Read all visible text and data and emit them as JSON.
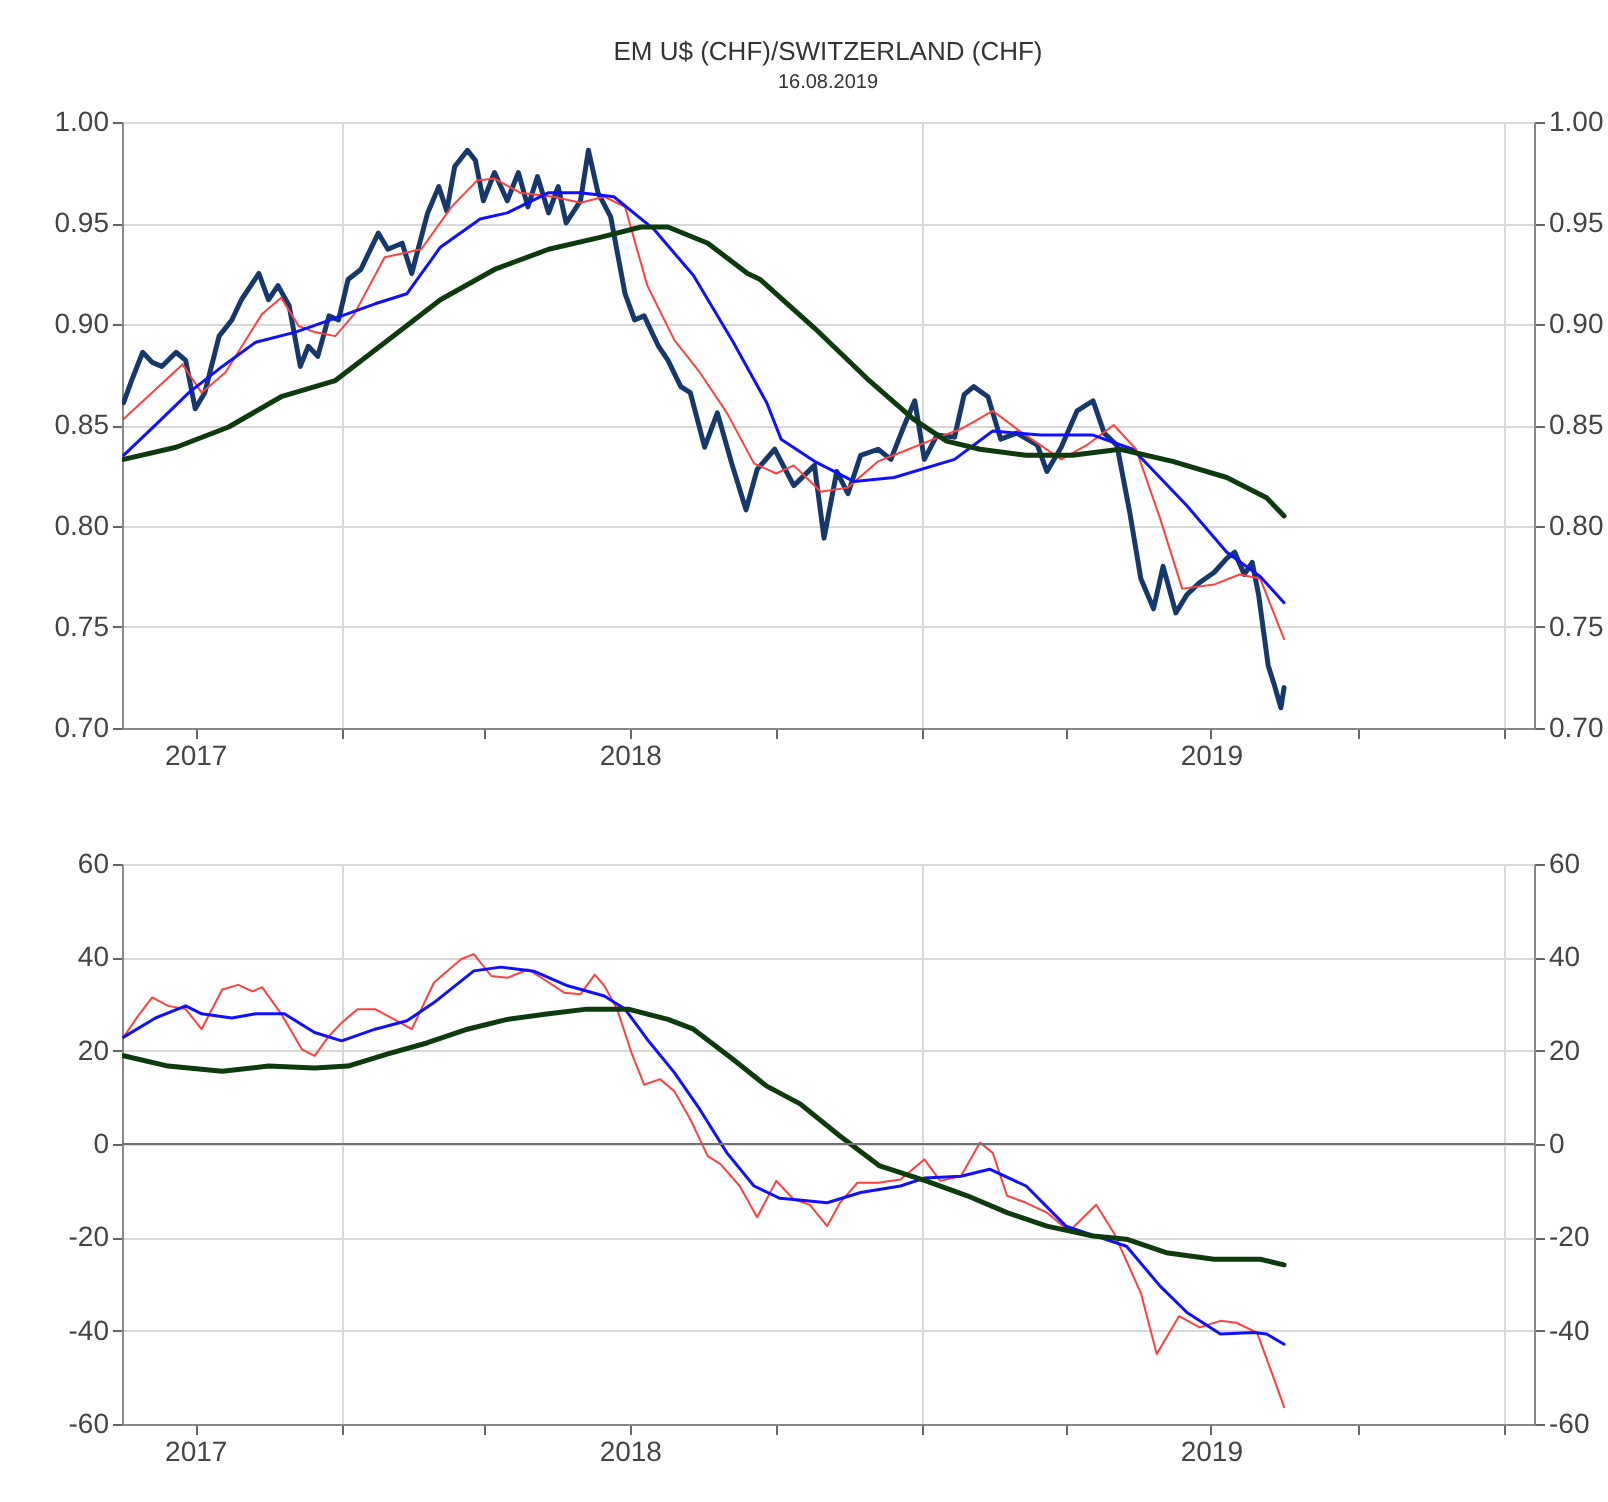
{
  "chart_data": [
    {
      "type": "line",
      "title": "EM U$ (CHF)/SWITZERLAND (CHF)",
      "subtitle": "16.08.2019",
      "xlim": [
        "2017-08-16",
        "2020-01-20"
      ],
      "xticks": [
        {
          "value": "2017-10-01",
          "label": "2017"
        },
        {
          "value": "2018-01-01",
          "label": null
        },
        {
          "value": "2018-04-01",
          "label": null
        },
        {
          "value": "2018-07-01",
          "label": "2018"
        },
        {
          "value": "2018-10-01",
          "label": null
        },
        {
          "value": "2019-01-01",
          "label": null
        },
        {
          "value": "2019-04-01",
          "label": null
        },
        {
          "value": "2019-07-01",
          "label": "2019"
        },
        {
          "value": "2019-10-01",
          "label": null
        },
        {
          "value": "2020-01-01",
          "label": null
        }
      ],
      "ylim": [
        0.7,
        1.0
      ],
      "yticks": [
        {
          "value": 0.7,
          "label": "0.70"
        },
        {
          "value": 0.75,
          "label": "0.75"
        },
        {
          "value": 0.8,
          "label": "0.80"
        },
        {
          "value": 0.85,
          "label": "0.85"
        },
        {
          "value": 0.9,
          "label": "0.90"
        },
        {
          "value": 0.95,
          "label": "0.95"
        },
        {
          "value": 1.0,
          "label": "1.00"
        }
      ],
      "y2lim": [
        0.7,
        1.0
      ],
      "y2ticks": [
        {
          "value": 0.7,
          "label": "0.70"
        },
        {
          "value": 0.75,
          "label": "0.75"
        },
        {
          "value": 0.8,
          "label": "0.80"
        },
        {
          "value": 0.85,
          "label": "0.85"
        },
        {
          "value": 0.9,
          "label": "0.90"
        },
        {
          "value": 0.95,
          "label": "0.95"
        },
        {
          "value": 1.0,
          "label": "1.00"
        }
      ],
      "grid": true,
      "series": [
        {
          "color": "#17386b",
          "x": [
            "2017-08-17",
            "2017-08-22",
            "2017-08-29",
            "2017-09-04",
            "2017-09-10",
            "2017-09-19",
            "2017-09-25",
            "2017-10-01",
            "2017-10-07",
            "2017-10-16",
            "2017-10-24",
            "2017-10-30",
            "2017-11-10",
            "2017-11-16",
            "2017-11-22",
            "2017-11-29",
            "2017-12-06",
            "2017-12-11",
            "2017-12-17",
            "2017-12-24",
            "2017-12-30",
            "2018-01-05",
            "2018-01-13",
            "2018-01-24",
            "2018-01-30",
            "2018-02-08",
            "2018-02-14",
            "2018-02-24",
            "2018-03-03",
            "2018-03-08",
            "2018-03-13",
            "2018-03-21",
            "2018-03-26",
            "2018-03-31",
            "2018-04-07",
            "2018-04-15",
            "2018-04-22",
            "2018-04-28",
            "2018-05-04",
            "2018-05-11",
            "2018-05-17",
            "2018-05-22",
            "2018-05-31",
            "2018-06-05",
            "2018-06-11",
            "2018-06-19",
            "2018-06-28",
            "2018-07-04",
            "2018-07-10",
            "2018-07-19",
            "2018-07-25",
            "2018-08-02",
            "2018-08-08",
            "2018-08-17",
            "2018-08-25",
            "2018-09-03",
            "2018-09-12",
            "2018-09-19",
            "2018-09-30",
            "2018-10-12",
            "2018-10-25",
            "2018-10-31",
            "2018-11-08",
            "2018-11-15",
            "2018-11-23",
            "2018-12-04",
            "2018-12-12",
            "2018-12-20",
            "2018-12-27",
            "2019-01-02",
            "2019-01-10",
            "2019-01-21",
            "2019-01-27",
            "2019-02-02",
            "2019-02-11",
            "2019-02-19",
            "2019-03-01",
            "2019-03-14",
            "2019-03-20",
            "2019-03-29",
            "2019-04-08",
            "2019-04-18",
            "2019-04-25",
            "2019-05-03",
            "2019-05-11",
            "2019-05-18",
            "2019-05-26",
            "2019-06-01",
            "2019-06-09",
            "2019-06-16",
            "2019-06-24",
            "2019-07-03",
            "2019-07-11",
            "2019-07-16",
            "2019-07-22",
            "2019-07-27",
            "2019-07-31",
            "2019-08-06",
            "2019-08-10",
            "2019-08-14",
            "2019-08-16"
          ],
          "values": [
            0.861,
            0.872,
            0.886,
            0.881,
            0.879,
            0.886,
            0.882,
            0.858,
            0.866,
            0.894,
            0.902,
            0.912,
            0.925,
            0.912,
            0.919,
            0.909,
            0.879,
            0.889,
            0.884,
            0.904,
            0.902,
            0.922,
            0.927,
            0.945,
            0.937,
            0.94,
            0.925,
            0.955,
            0.968,
            0.956,
            0.978,
            0.986,
            0.981,
            0.961,
            0.975,
            0.961,
            0.975,
            0.958,
            0.973,
            0.955,
            0.968,
            0.95,
            0.961,
            0.986,
            0.965,
            0.953,
            0.915,
            0.902,
            0.904,
            0.889,
            0.882,
            0.869,
            0.866,
            0.839,
            0.856,
            0.831,
            0.808,
            0.828,
            0.838,
            0.82,
            0.83,
            0.794,
            0.827,
            0.816,
            0.835,
            0.838,
            0.833,
            0.849,
            0.862,
            0.833,
            0.845,
            0.844,
            0.865,
            0.869,
            0.864,
            0.843,
            0.846,
            0.84,
            0.827,
            0.839,
            0.857,
            0.862,
            0.846,
            0.84,
            0.807,
            0.774,
            0.759,
            0.78,
            0.757,
            0.766,
            0.772,
            0.777,
            0.784,
            0.787,
            0.776,
            0.782,
            0.766,
            0.731,
            0.721,
            0.71,
            0.72
          ]
        },
        {
          "color": "#ff4040",
          "x": [
            "2017-08-17",
            "2017-09-23",
            "2017-10-05",
            "2017-10-20",
            "2017-11-12",
            "2017-11-24",
            "2017-12-05",
            "2017-12-15",
            "2017-12-28",
            "2018-01-09",
            "2018-01-28",
            "2018-02-20",
            "2018-03-11",
            "2018-03-27",
            "2018-04-07",
            "2018-04-23",
            "2018-05-14",
            "2018-05-31",
            "2018-06-15",
            "2018-06-28",
            "2018-07-12",
            "2018-07-29",
            "2018-08-14",
            "2018-08-31",
            "2018-09-17",
            "2018-10-01",
            "2018-10-12",
            "2018-10-29",
            "2018-11-15",
            "2018-12-04",
            "2018-12-20",
            "2019-01-08",
            "2019-01-25",
            "2019-02-14",
            "2019-03-03",
            "2019-03-29",
            "2019-04-14",
            "2019-05-01",
            "2019-05-15",
            "2019-05-30",
            "2019-06-13",
            "2019-07-03",
            "2019-07-19",
            "2019-08-01",
            "2019-08-16"
          ],
          "values": [
            0.853,
            0.88,
            0.866,
            0.876,
            0.905,
            0.913,
            0.899,
            0.896,
            0.894,
            0.905,
            0.933,
            0.937,
            0.958,
            0.971,
            0.972,
            0.965,
            0.963,
            0.96,
            0.963,
            0.958,
            0.919,
            0.892,
            0.876,
            0.856,
            0.831,
            0.826,
            0.83,
            0.817,
            0.819,
            0.832,
            0.837,
            0.843,
            0.848,
            0.857,
            0.847,
            0.833,
            0.84,
            0.85,
            0.838,
            0.804,
            0.769,
            0.771,
            0.776,
            0.774,
            0.744
          ]
        },
        {
          "color": "#1010ff",
          "x": [
            "2017-08-17",
            "2017-09-10",
            "2017-09-27",
            "2017-10-18",
            "2017-11-08",
            "2017-12-03",
            "2018-01-01",
            "2018-01-22",
            "2018-02-11",
            "2018-03-04",
            "2018-03-29",
            "2018-04-15",
            "2018-05-11",
            "2018-05-31",
            "2018-06-21",
            "2018-07-16",
            "2018-08-10",
            "2018-09-04",
            "2018-09-25",
            "2018-10-04",
            "2018-10-25",
            "2018-11-19",
            "2018-12-14",
            "2019-01-21",
            "2019-02-14",
            "2019-03-16",
            "2019-04-18",
            "2019-05-13",
            "2019-06-16",
            "2019-07-11",
            "2019-08-01",
            "2019-08-16"
          ],
          "values": [
            0.835,
            0.853,
            0.866,
            0.879,
            0.891,
            0.896,
            0.904,
            0.91,
            0.915,
            0.938,
            0.952,
            0.955,
            0.965,
            0.965,
            0.963,
            0.947,
            0.924,
            0.891,
            0.861,
            0.843,
            0.832,
            0.822,
            0.824,
            0.833,
            0.847,
            0.845,
            0.845,
            0.838,
            0.81,
            0.787,
            0.775,
            0.762
          ]
        },
        {
          "color": "#0d3b0d",
          "x": [
            "2017-08-17",
            "2017-09-19",
            "2017-10-22",
            "2017-11-24",
            "2017-12-28",
            "2018-01-30",
            "2018-03-04",
            "2018-04-07",
            "2018-05-11",
            "2018-06-13",
            "2018-07-08",
            "2018-07-25",
            "2018-08-19",
            "2018-09-13",
            "2018-09-21",
            "2018-10-25",
            "2018-11-27",
            "2018-12-26",
            "2019-01-16",
            "2019-02-06",
            "2019-03-07",
            "2019-04-05",
            "2019-05-05",
            "2019-06-07",
            "2019-07-11",
            "2019-08-05",
            "2019-08-16"
          ],
          "values": [
            0.833,
            0.839,
            0.849,
            0.864,
            0.872,
            0.892,
            0.912,
            0.927,
            0.937,
            0.943,
            0.948,
            0.948,
            0.94,
            0.925,
            0.922,
            0.898,
            0.873,
            0.853,
            0.842,
            0.838,
            0.835,
            0.835,
            0.838,
            0.832,
            0.824,
            0.814,
            0.805
          ]
        }
      ]
    },
    {
      "type": "line",
      "xlim": [
        "2017-08-16",
        "2020-01-20"
      ],
      "xticks": [
        {
          "value": "2017-10-01",
          "label": "2017"
        },
        {
          "value": "2018-01-01",
          "label": null
        },
        {
          "value": "2018-04-01",
          "label": null
        },
        {
          "value": "2018-07-01",
          "label": "2018"
        },
        {
          "value": "2018-10-01",
          "label": null
        },
        {
          "value": "2019-01-01",
          "label": null
        },
        {
          "value": "2019-04-01",
          "label": null
        },
        {
          "value": "2019-07-01",
          "label": "2019"
        },
        {
          "value": "2019-10-01",
          "label": null
        },
        {
          "value": "2020-01-01",
          "label": null
        }
      ],
      "ylim": [
        -60,
        60
      ],
      "yticks": [
        -60,
        -40,
        -20,
        0,
        20,
        40,
        60
      ],
      "y2lim": [
        -60,
        60
      ],
      "y2ticks": [
        -60,
        -40,
        -20,
        0,
        20,
        40,
        60
      ],
      "grid": true,
      "ref_lines": [
        {
          "axis": "y",
          "value": 0,
          "color": "#707070"
        }
      ],
      "series": [
        {
          "color": "#ff4040",
          "x": [
            "2017-08-17",
            "2017-08-26",
            "2017-09-04",
            "2017-09-14",
            "2017-09-25",
            "2017-10-05",
            "2017-10-18",
            "2017-10-28",
            "2017-11-06",
            "2017-11-12",
            "2017-11-24",
            "2017-12-07",
            "2017-12-15",
            "2017-12-24",
            "2018-01-01",
            "2018-01-11",
            "2018-01-22",
            "2018-02-03",
            "2018-02-14",
            "2018-02-28",
            "2018-03-17",
            "2018-03-25",
            "2018-04-05",
            "2018-04-15",
            "2018-04-28",
            "2018-05-08",
            "2018-05-21",
            "2018-05-31",
            "2018-06-09",
            "2018-06-15",
            "2018-06-23",
            "2018-07-02",
            "2018-07-10",
            "2018-07-20",
            "2018-07-29",
            "2018-08-08",
            "2018-08-19",
            "2018-08-27",
            "2018-09-08",
            "2018-09-19",
            "2018-10-01",
            "2018-10-12",
            "2018-10-22",
            "2018-11-02",
            "2018-11-10",
            "2018-11-21",
            "2018-12-04",
            "2018-12-18",
            "2019-01-02",
            "2019-01-12",
            "2019-01-25",
            "2019-02-06",
            "2019-02-14",
            "2019-02-23",
            "2019-03-07",
            "2019-03-20",
            "2019-04-03",
            "2019-04-20",
            "2019-05-01",
            "2019-05-18",
            "2019-05-28",
            "2019-06-11",
            "2019-06-24",
            "2019-07-07",
            "2019-07-17",
            "2019-07-30",
            "2019-08-09",
            "2019-08-16"
          ],
          "values": [
            22.9,
            27.4,
            31.4,
            29.6,
            28.9,
            24.6,
            33.1,
            34.1,
            32.7,
            33.6,
            27.9,
            20.3,
            18.9,
            23.1,
            26.0,
            28.9,
            28.9,
            26.7,
            24.6,
            34.6,
            39.6,
            40.7,
            36.0,
            35.6,
            37.4,
            35.3,
            32.4,
            32.1,
            36.3,
            33.9,
            28.9,
            19.6,
            12.7,
            13.9,
            11.3,
            5.3,
            -2.6,
            -4.3,
            -9.0,
            -15.7,
            -7.9,
            -11.9,
            -13.0,
            -17.6,
            -12.6,
            -8.3,
            -8.3,
            -7.6,
            -3.3,
            -7.9,
            -6.9,
            0.3,
            -1.9,
            -11.1,
            -12.6,
            -14.7,
            -18.7,
            -13.0,
            -19.0,
            -31.9,
            -45.0,
            -36.9,
            -39.3,
            -37.9,
            -38.3,
            -40.4,
            -49.7,
            -56.4
          ]
        },
        {
          "color": "#1010ff",
          "x": [
            "2017-08-17",
            "2017-09-06",
            "2017-09-25",
            "2017-10-05",
            "2017-10-24",
            "2017-11-08",
            "2017-11-26",
            "2017-12-15",
            "2018-01-01",
            "2018-01-22",
            "2018-02-11",
            "2018-02-28",
            "2018-03-25",
            "2018-04-11",
            "2018-05-02",
            "2018-05-23",
            "2018-06-15",
            "2018-06-28",
            "2018-07-12",
            "2018-07-29",
            "2018-08-14",
            "2018-08-31",
            "2018-09-17",
            "2018-10-03",
            "2018-10-12",
            "2018-11-02",
            "2018-11-23",
            "2018-12-18",
            "2019-01-02",
            "2019-01-25",
            "2019-02-12",
            "2019-03-07",
            "2019-04-01",
            "2019-04-22",
            "2019-05-09",
            "2019-05-30",
            "2019-06-16",
            "2019-07-07",
            "2019-07-28",
            "2019-08-05",
            "2019-08-16"
          ],
          "values": [
            22.9,
            27.0,
            29.6,
            27.9,
            27.0,
            27.9,
            27.9,
            23.9,
            22.1,
            24.6,
            26.4,
            30.3,
            37.1,
            37.9,
            37.0,
            33.9,
            31.7,
            28.9,
            22.4,
            15.3,
            7.4,
            -1.9,
            -9.0,
            -11.6,
            -11.9,
            -12.6,
            -10.4,
            -9.0,
            -7.3,
            -6.9,
            -5.4,
            -9.0,
            -17.6,
            -20.0,
            -21.9,
            -30.4,
            -36.1,
            -40.7,
            -40.4,
            -40.7,
            -42.9
          ]
        },
        {
          "color": "#0d3b0d",
          "x": [
            "2017-08-17",
            "2017-09-14",
            "2017-10-18",
            "2017-11-16",
            "2017-12-15",
            "2018-01-05",
            "2018-01-30",
            "2018-02-24",
            "2018-03-21",
            "2018-04-15",
            "2018-05-11",
            "2018-06-04",
            "2018-06-30",
            "2018-07-25",
            "2018-08-10",
            "2018-09-04",
            "2018-09-25",
            "2018-10-16",
            "2018-11-10",
            "2018-12-05",
            "2019-01-03",
            "2019-01-29",
            "2019-02-23",
            "2019-03-20",
            "2019-04-18",
            "2019-05-09",
            "2019-06-03",
            "2019-07-03",
            "2019-08-01",
            "2019-08-16"
          ],
          "values": [
            18.9,
            16.7,
            15.6,
            16.7,
            16.3,
            16.7,
            19.3,
            21.7,
            24.6,
            26.7,
            27.9,
            28.9,
            28.9,
            26.7,
            24.6,
            18.1,
            12.4,
            8.6,
            1.7,
            -4.7,
            -7.9,
            -11.1,
            -14.7,
            -17.6,
            -19.7,
            -20.4,
            -23.3,
            -24.7,
            -24.7,
            -25.9
          ]
        }
      ]
    }
  ]
}
